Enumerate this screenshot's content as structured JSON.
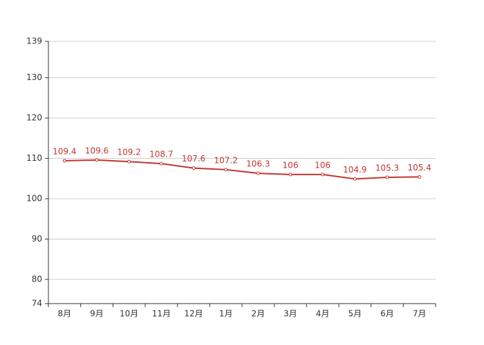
{
  "chart_data": {
    "type": "line",
    "categories": [
      "8月",
      "9月",
      "10月",
      "11月",
      "12月",
      "1月",
      "2月",
      "3月",
      "4月",
      "5月",
      "6月",
      "7月"
    ],
    "values": [
      109.4,
      109.6,
      109.2,
      108.7,
      107.6,
      107.2,
      106.3,
      106,
      106,
      104.9,
      105.3,
      105.4
    ],
    "color": "#c23531",
    "ylim": [
      74,
      139
    ],
    "yticks": [
      74,
      80,
      90,
      100,
      110,
      120,
      130,
      139
    ],
    "grid": true
  }
}
